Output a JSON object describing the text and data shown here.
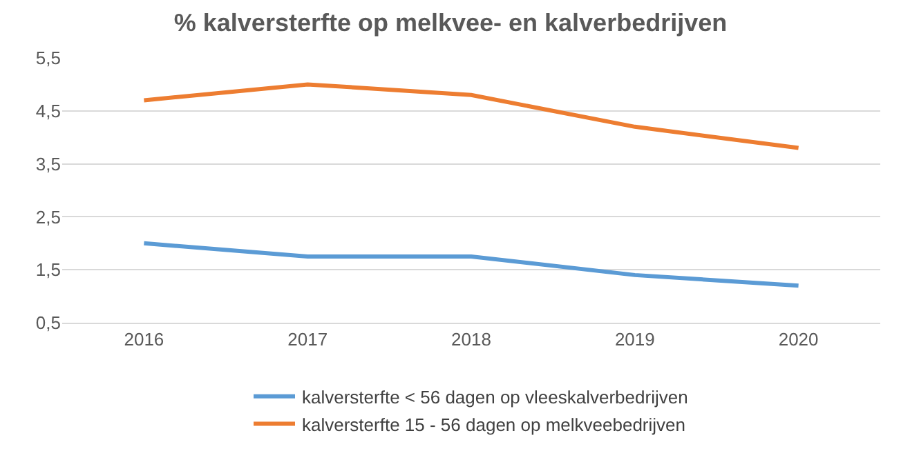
{
  "chart_data": {
    "type": "line",
    "title": "% kalversterfte op melkvee- en kalverbedrijven",
    "categories": [
      "2016",
      "2017",
      "2018",
      "2019",
      "2020"
    ],
    "series": [
      {
        "name": "kalversterfte < 56 dagen op vleeskalverbedrijven",
        "color": "#5b9bd5",
        "values": [
          2.0,
          1.75,
          1.75,
          1.4,
          1.2
        ]
      },
      {
        "name": "kalversterfte 15 - 56 dagen op melkveebedrijven",
        "color": "#ed7d31",
        "values": [
          4.7,
          5.0,
          4.8,
          4.2,
          3.8
        ]
      }
    ],
    "ylim": [
      0.5,
      5.5
    ],
    "yticks": [
      {
        "value": 0.5,
        "label": "0,5"
      },
      {
        "value": 1.5,
        "label": "1,5"
      },
      {
        "value": 2.5,
        "label": "2,5"
      },
      {
        "value": 3.5,
        "label": "3,5"
      },
      {
        "value": 4.5,
        "label": "4,5"
      },
      {
        "value": 5.5,
        "label": "5,5"
      }
    ],
    "grid": "y",
    "legend": "bottom",
    "marker": "none",
    "line_style": "solid"
  }
}
